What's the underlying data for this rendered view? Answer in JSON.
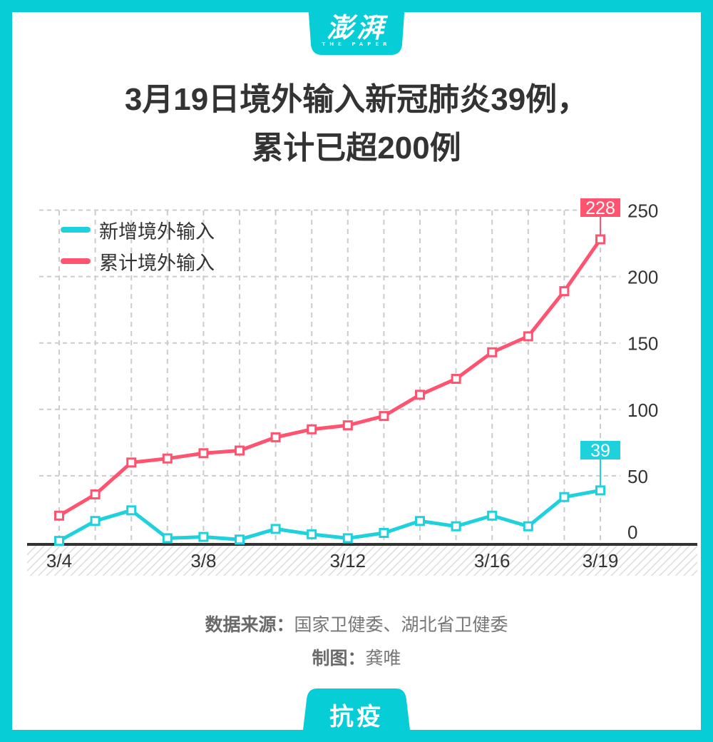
{
  "brand": {
    "logo_text": "澎湃",
    "logo_sub": "THE PAPER",
    "frame_color": "#07cdd6",
    "bottom_tag": "抗疫"
  },
  "title": {
    "line1": "3月19日境外输入新冠肺炎39例，",
    "line2": "累计已超200例"
  },
  "legend": [
    {
      "label": "新增境外输入",
      "color": "#1fd1dc"
    },
    {
      "label": "累计境外输入",
      "color": "#ff5370"
    }
  ],
  "footer": {
    "source_label": "数据来源：",
    "source_value": "国家卫健委、湖北省卫健委",
    "author_label": "制图：",
    "author_value": "龚唯"
  },
  "chart_data": {
    "type": "line",
    "title": "3月19日境外输入新冠肺炎39例，累计已超200例",
    "xlabel": "",
    "ylabel": "",
    "x": [
      "3/4",
      "3/5",
      "3/6",
      "3/7",
      "3/8",
      "3/9",
      "3/10",
      "3/11",
      "3/12",
      "3/13",
      "3/14",
      "3/15",
      "3/16",
      "3/17",
      "3/18",
      "3/19"
    ],
    "x_tick_labels": [
      "3/4",
      "3/8",
      "3/12",
      "3/16",
      "3/19"
    ],
    "y_ticks": [
      0,
      50,
      100,
      150,
      200,
      250
    ],
    "ylim": [
      0,
      250
    ],
    "y_axis_position": "right",
    "grid": true,
    "legend_position": "top-left",
    "series": [
      {
        "name": "新增境外输入",
        "color": "#1fd1dc",
        "values": [
          1,
          16,
          24,
          3,
          4,
          2,
          10,
          6,
          3,
          7,
          16,
          12,
          20,
          12,
          34,
          39
        ]
      },
      {
        "name": "累计境外输入",
        "color": "#ff5370",
        "values": [
          20,
          36,
          60,
          63,
          67,
          69,
          79,
          85,
          88,
          95,
          111,
          123,
          143,
          155,
          189,
          228
        ]
      }
    ],
    "annotations": [
      {
        "series": "累计境外输入",
        "x": "3/19",
        "label": "228"
      },
      {
        "series": "新增境外输入",
        "x": "3/19",
        "label": "39"
      }
    ]
  }
}
